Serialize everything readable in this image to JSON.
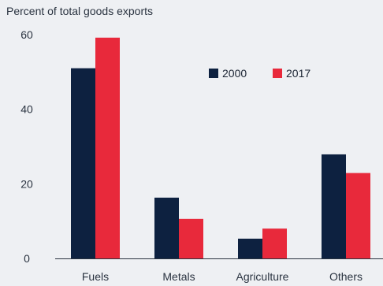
{
  "chart_data": {
    "type": "bar",
    "title": "",
    "ylabel": "Percent of total goods exports",
    "xlabel": "",
    "categories": [
      "Fuels",
      "Metals",
      "Agriculture",
      "Others"
    ],
    "series": [
      {
        "name": "2000",
        "color": "#0d2140",
        "values": [
          51,
          16.3,
          5.3,
          27.9
        ]
      },
      {
        "name": "2017",
        "color": "#e8293b",
        "values": [
          59.2,
          10.6,
          8,
          22.9
        ]
      }
    ],
    "ylim": [
      0,
      60
    ],
    "yticks": [
      0,
      20,
      40,
      60
    ],
    "grid": false,
    "legend_position": "top-right",
    "background": "#eef0f3",
    "axis_color": "#2a3340"
  }
}
